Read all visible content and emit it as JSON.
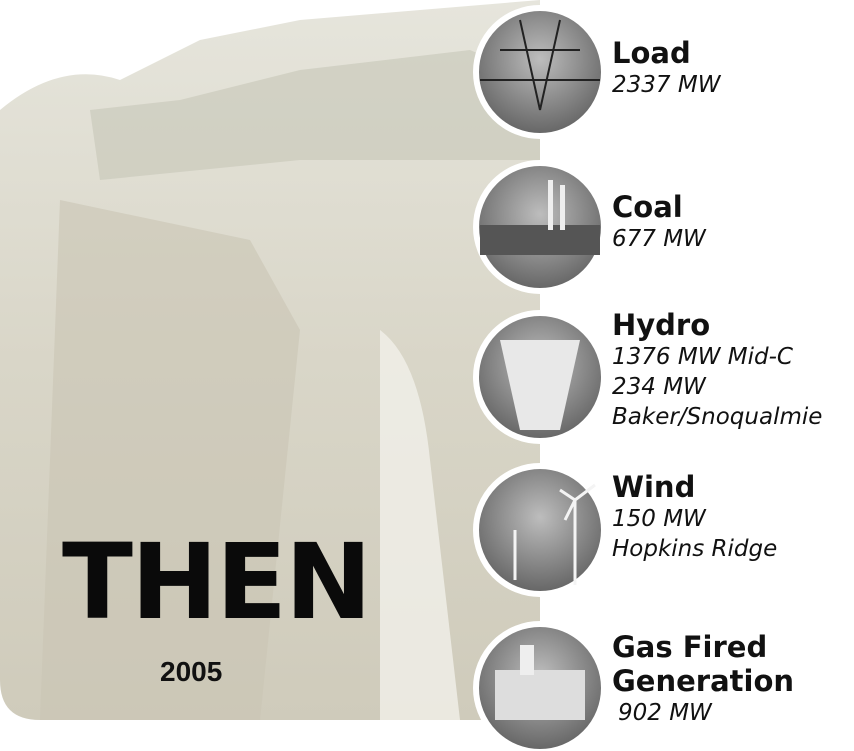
{
  "slide": {
    "title": "THEN",
    "year": "2005",
    "items": [
      {
        "label": "Load",
        "lines": [
          "2337 MW"
        ]
      },
      {
        "label": "Coal",
        "lines": [
          "677 MW"
        ]
      },
      {
        "label": "Hydro",
        "lines": [
          "1376 MW Mid-C",
          "234 MW",
          "Baker/Snoqualmie"
        ]
      },
      {
        "label": "Wind",
        "lines": [
          "150 MW",
          "Hopkins Ridge"
        ]
      },
      {
        "label": "Gas Fired",
        "lines": [
          "Generation",
          "902 MW"
        ]
      }
    ]
  }
}
